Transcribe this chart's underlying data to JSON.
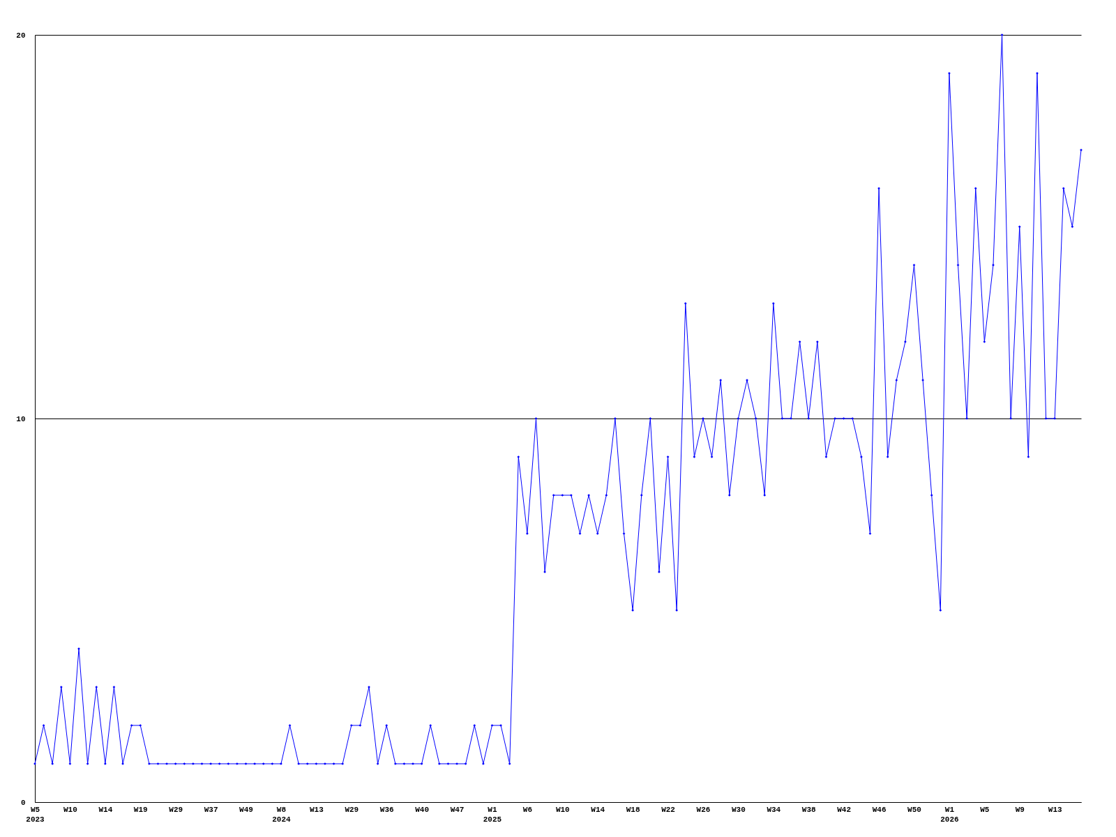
{
  "chart_data": {
    "type": "line",
    "categories": [
      "W5\n2023",
      null,
      null,
      null,
      "W10",
      null,
      null,
      null,
      "W14",
      null,
      null,
      null,
      "W19",
      null,
      null,
      null,
      "W29",
      null,
      null,
      null,
      "W37",
      null,
      null,
      null,
      "W49",
      null,
      null,
      null,
      "W8\n2024",
      null,
      null,
      null,
      "W13",
      null,
      null,
      null,
      "W29",
      null,
      null,
      null,
      "W36",
      null,
      null,
      null,
      "W40",
      null,
      null,
      null,
      "W47",
      null,
      null,
      null,
      "W1\n2025",
      null,
      null,
      null,
      "W6",
      null,
      null,
      null,
      "W10",
      null,
      null,
      null,
      "W14",
      null,
      null,
      null,
      "W18",
      null,
      null,
      null,
      "W22",
      null,
      null,
      null,
      "W26",
      null,
      null,
      null,
      "W30",
      null,
      null,
      null,
      "W34",
      null,
      null,
      null,
      "W38",
      null,
      null,
      null,
      "W42",
      null,
      null,
      null,
      "W46",
      null,
      null,
      null,
      "W50",
      null,
      null,
      null,
      "W1\n2026",
      null,
      null,
      null,
      "W5",
      null,
      null,
      null,
      "W9",
      null,
      null,
      null,
      "W13",
      null,
      null,
      null
    ],
    "series": [
      {
        "color": "#0000ff",
        "values": [
          1,
          2,
          1,
          3,
          1,
          4,
          1,
          3,
          1,
          3,
          1,
          2,
          2,
          1,
          1,
          1,
          1,
          1,
          1,
          1,
          1,
          1,
          1,
          1,
          1,
          1,
          1,
          1,
          1,
          2,
          1,
          1,
          1,
          1,
          1,
          1,
          2,
          2,
          3,
          1,
          2,
          1,
          1,
          1,
          1,
          2,
          1,
          1,
          1,
          1,
          2,
          1,
          2,
          2,
          1,
          9,
          7,
          10,
          6,
          8,
          8,
          8,
          7,
          8,
          7,
          8,
          10,
          7,
          5,
          8,
          10,
          6,
          9,
          5,
          13,
          9,
          10,
          9,
          11,
          8,
          10,
          11,
          10,
          8,
          13,
          10,
          10,
          12,
          10,
          12,
          9,
          10,
          10,
          10,
          9,
          7,
          16,
          9,
          11,
          12,
          14,
          11,
          8,
          5,
          19,
          14,
          10,
          16,
          12,
          14,
          20,
          10,
          15,
          9,
          19,
          10,
          10,
          16,
          15,
          17
        ]
      }
    ],
    "ylim": [
      0,
      20
    ],
    "yticks": [
      0,
      10,
      20
    ],
    "grid": "y",
    "marker": "diamond",
    "line_style": "solid"
  }
}
